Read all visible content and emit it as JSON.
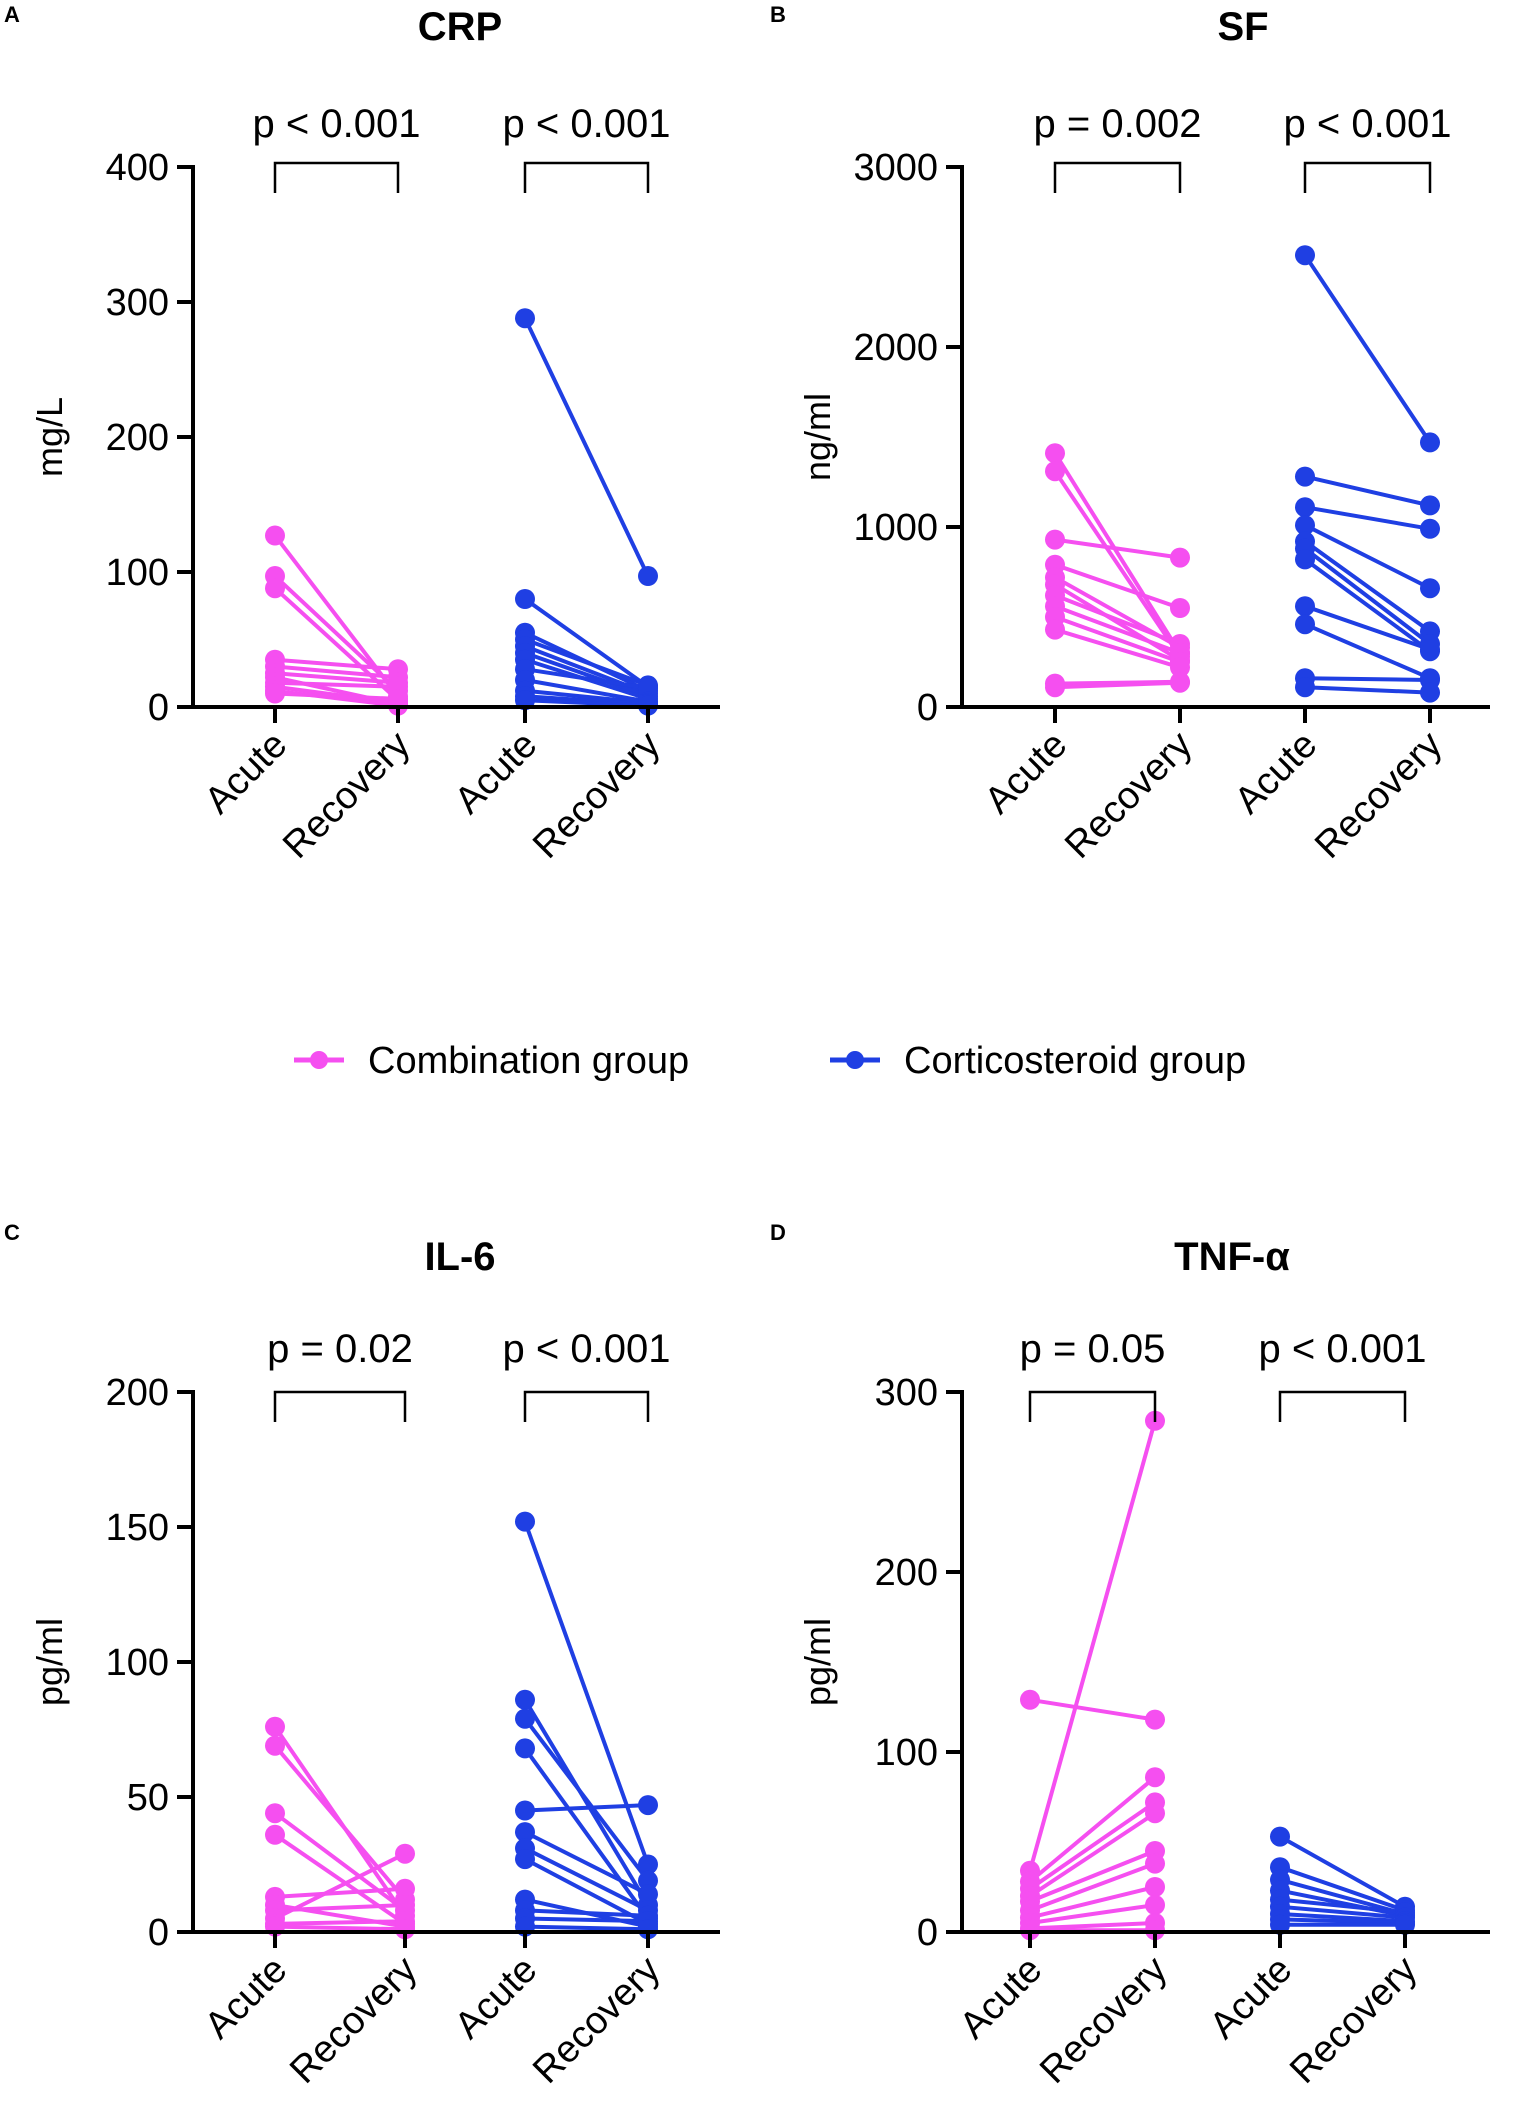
{
  "legend": {
    "items": [
      {
        "label": "Combination group",
        "color": "#f54ff0"
      },
      {
        "label": "Corticosteroid group",
        "color": "#1f3fe3"
      }
    ]
  },
  "chart_data": [
    {
      "type": "line",
      "panel": "A",
      "title": "CRP",
      "ylabel": "mg/L",
      "ylim": [
        0,
        400
      ],
      "yticks": [
        0,
        100,
        200,
        300,
        400
      ],
      "categories": [
        "Acute",
        "Recovery",
        "Acute",
        "Recovery"
      ],
      "pvalues": [
        "p < 0.001",
        "p < 0.001"
      ],
      "series": [
        {
          "name": "Combination group",
          "color": "#f54ff0",
          "pairs": [
            [
              127,
              8
            ],
            [
              97,
              12
            ],
            [
              88,
              5
            ],
            [
              35,
              28
            ],
            [
              30,
              22
            ],
            [
              25,
              18
            ],
            [
              22,
              2
            ],
            [
              18,
              15
            ],
            [
              15,
              3
            ],
            [
              12,
              1
            ],
            [
              10,
              6
            ]
          ]
        },
        {
          "name": "Corticosteroid group",
          "color": "#1f3fe3",
          "pairs": [
            [
              288,
              97
            ],
            [
              80,
              15
            ],
            [
              55,
              12
            ],
            [
              50,
              16
            ],
            [
              45,
              10
            ],
            [
              40,
              8
            ],
            [
              35,
              6
            ],
            [
              28,
              14
            ],
            [
              20,
              4
            ],
            [
              12,
              3
            ],
            [
              8,
              2
            ],
            [
              5,
              1
            ]
          ]
        }
      ]
    },
    {
      "type": "line",
      "panel": "B",
      "title": "SF",
      "ylabel": "ng/ml",
      "ylim": [
        0,
        3000
      ],
      "yticks": [
        0,
        1000,
        2000,
        3000
      ],
      "categories": [
        "Acute",
        "Recovery",
        "Acute",
        "Recovery"
      ],
      "pvalues": [
        "p = 0.002",
        "p < 0.001"
      ],
      "series": [
        {
          "name": "Combination group",
          "color": "#f54ff0",
          "pairs": [
            [
              1410,
              300
            ],
            [
              1310,
              280
            ],
            [
              930,
              830
            ],
            [
              790,
              550
            ],
            [
              720,
              330
            ],
            [
              680,
              260
            ],
            [
              620,
              350
            ],
            [
              560,
              300
            ],
            [
              500,
              250
            ],
            [
              430,
              220
            ],
            [
              130,
              140
            ],
            [
              110,
              135
            ]
          ]
        },
        {
          "name": "Corticosteroid group",
          "color": "#1f3fe3",
          "pairs": [
            [
              2510,
              1470
            ],
            [
              1280,
              1120
            ],
            [
              1110,
              990
            ],
            [
              1010,
              660
            ],
            [
              920,
              420
            ],
            [
              880,
              350
            ],
            [
              820,
              310
            ],
            [
              560,
              320
            ],
            [
              460,
              160
            ],
            [
              160,
              150
            ],
            [
              110,
              80
            ]
          ]
        }
      ]
    },
    {
      "type": "line",
      "panel": "C",
      "title": "IL-6",
      "ylabel": "pg/ml",
      "ylim": [
        0,
        200
      ],
      "yticks": [
        0,
        50,
        100,
        150,
        200
      ],
      "categories": [
        "Acute",
        "Recovery",
        "Acute",
        "Recovery"
      ],
      "pvalues": [
        "p = 0.02",
        "p < 0.001"
      ],
      "series": [
        {
          "name": "Combination group",
          "color": "#f54ff0",
          "pairs": [
            [
              76,
              6
            ],
            [
              69,
              12
            ],
            [
              44,
              8
            ],
            [
              36,
              3
            ],
            [
              13,
              16
            ],
            [
              10,
              2
            ],
            [
              8,
              10
            ],
            [
              5,
              29
            ],
            [
              3,
              4
            ],
            [
              2,
              1
            ]
          ]
        },
        {
          "name": "Corticosteroid group",
          "color": "#1f3fe3",
          "pairs": [
            [
              152,
              25
            ],
            [
              86,
              10
            ],
            [
              79,
              19
            ],
            [
              68,
              5
            ],
            [
              45,
              47
            ],
            [
              37,
              14
            ],
            [
              31,
              8
            ],
            [
              27,
              3
            ],
            [
              12,
              2
            ],
            [
              8,
              6
            ],
            [
              5,
              4
            ],
            [
              2,
              1
            ]
          ]
        }
      ]
    },
    {
      "type": "line",
      "panel": "D",
      "title": "TNF-α",
      "ylabel": "pg/ml",
      "ylim": [
        0,
        300
      ],
      "yticks": [
        0,
        100,
        200,
        300
      ],
      "categories": [
        "Acute",
        "Recovery",
        "Acute",
        "Recovery"
      ],
      "pvalues": [
        "p = 0.05",
        "p < 0.001"
      ],
      "series": [
        {
          "name": "Combination group",
          "color": "#f54ff0",
          "pairs": [
            [
              129,
              118
            ],
            [
              34,
              284
            ],
            [
              28,
              86
            ],
            [
              24,
              72
            ],
            [
              20,
              66
            ],
            [
              17,
              45
            ],
            [
              12,
              38
            ],
            [
              8,
              25
            ],
            [
              5,
              15
            ],
            [
              2,
              5
            ],
            [
              1,
              1
            ]
          ]
        },
        {
          "name": "Corticosteroid group",
          "color": "#1f3fe3",
          "pairs": [
            [
              53,
              14
            ],
            [
              36,
              12
            ],
            [
              29,
              10
            ],
            [
              23,
              9
            ],
            [
              18,
              11
            ],
            [
              14,
              8
            ],
            [
              10,
              6
            ],
            [
              7,
              5
            ],
            [
              4,
              4
            ]
          ]
        }
      ]
    }
  ]
}
